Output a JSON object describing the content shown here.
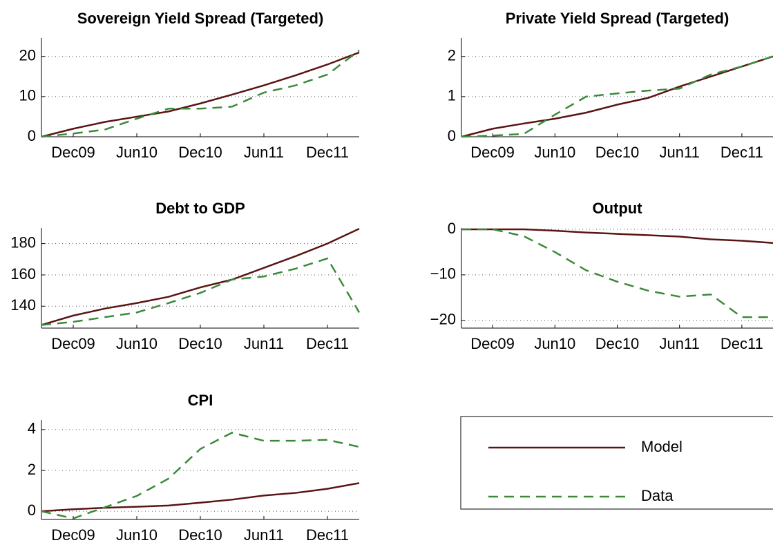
{
  "chart_data": [
    {
      "type": "line",
      "title": "Sovereign Yield Spread (Targeted)",
      "categories": [
        null,
        "Dec09",
        null,
        "Jun10",
        null,
        "Dec10",
        null,
        "Jun11",
        null,
        "Dec11",
        null
      ],
      "series": [
        {
          "name": "Model",
          "color": "#5a1414",
          "linestyle": "solid",
          "values": [
            0,
            2,
            3.7,
            5,
            6.3,
            8.3,
            10.5,
            12.8,
            15.3,
            18,
            21
          ]
        },
        {
          "name": "Data",
          "color": "#3a8a3a",
          "linestyle": "dashed",
          "values": [
            0,
            0.8,
            1.8,
            4.5,
            7,
            7,
            7.5,
            11,
            12.8,
            15.5,
            21.5
          ]
        }
      ],
      "ylim": [
        0,
        24.6
      ],
      "yticks": [
        0,
        10,
        20
      ],
      "grid": true
    },
    {
      "type": "line",
      "title": "Private Yield Spread (Targeted)",
      "categories": [
        null,
        "Dec09",
        null,
        "Jun10",
        null,
        "Dec10",
        null,
        "Jun11",
        null,
        "Dec11",
        null
      ],
      "series": [
        {
          "name": "Model",
          "color": "#5a1414",
          "linestyle": "solid",
          "values": [
            0,
            0.2,
            0.33,
            0.45,
            0.6,
            0.8,
            0.97,
            1.25,
            1.5,
            1.75,
            2.0
          ]
        },
        {
          "name": "Data",
          "color": "#3a8a3a",
          "linestyle": "dashed",
          "values": [
            0,
            0.03,
            0.07,
            0.55,
            1.0,
            1.08,
            1.15,
            1.2,
            1.55,
            1.75,
            2.0
          ]
        }
      ],
      "ylim": [
        0,
        2.46
      ],
      "yticks": [
        0,
        1,
        2
      ],
      "grid": true
    },
    {
      "type": "line",
      "title": "Debt to GDP",
      "categories": [
        null,
        "Dec09",
        null,
        "Jun10",
        null,
        "Dec10",
        null,
        "Jun11",
        null,
        "Dec11",
        null
      ],
      "series": [
        {
          "name": "Model",
          "color": "#5a1414",
          "linestyle": "solid",
          "values": [
            128,
            134,
            138.5,
            142,
            146,
            152,
            157,
            164.5,
            172,
            180,
            189.5
          ]
        },
        {
          "name": "Data",
          "color": "#3a8a3a",
          "linestyle": "dashed",
          "values": [
            128,
            130,
            133,
            136,
            142,
            148.5,
            157,
            159,
            164,
            170.5,
            136
          ]
        }
      ],
      "ylim": [
        126,
        190
      ],
      "yticks": [
        140,
        160,
        180
      ],
      "grid": true
    },
    {
      "type": "line",
      "title": "Output",
      "categories": [
        null,
        "Dec09",
        null,
        "Jun10",
        null,
        "Dec10",
        null,
        "Jun11",
        null,
        "Dec11",
        null
      ],
      "series": [
        {
          "name": "Model",
          "color": "#5a1414",
          "linestyle": "solid",
          "values": [
            0,
            0,
            0,
            -0.3,
            -0.7,
            -1,
            -1.3,
            -1.6,
            -2.2,
            -2.5,
            -3
          ]
        },
        {
          "name": "Data",
          "color": "#3a8a3a",
          "linestyle": "dashed",
          "values": [
            0,
            0,
            -1.5,
            -5,
            -9,
            -11.5,
            -13.5,
            -14.8,
            -14.3,
            -19.3,
            -19.3
          ]
        }
      ],
      "ylim": [
        -21.7,
        0.3
      ],
      "yticks": [
        {
          "value": -20,
          "label": "−20"
        },
        {
          "value": -10,
          "label": "−10"
        },
        0
      ],
      "grid": true
    },
    {
      "type": "line",
      "title": "CPI",
      "categories": [
        null,
        "Dec09",
        null,
        "Jun10",
        null,
        "Dec10",
        null,
        "Jun11",
        null,
        "Dec11",
        null
      ],
      "series": [
        {
          "name": "Model",
          "color": "#5a1414",
          "linestyle": "solid",
          "values": [
            0,
            0.1,
            0.17,
            0.22,
            0.28,
            0.42,
            0.57,
            0.77,
            0.9,
            1.1,
            1.38
          ]
        },
        {
          "name": "Data",
          "color": "#3a8a3a",
          "linestyle": "dashed",
          "values": [
            0,
            -0.35,
            0.2,
            0.75,
            1.6,
            3.05,
            3.85,
            3.45,
            3.45,
            3.5,
            3.15
          ]
        }
      ],
      "ylim": [
        -0.4,
        4.47
      ],
      "yticks": [
        0,
        2,
        4
      ],
      "grid": true
    }
  ]
}
